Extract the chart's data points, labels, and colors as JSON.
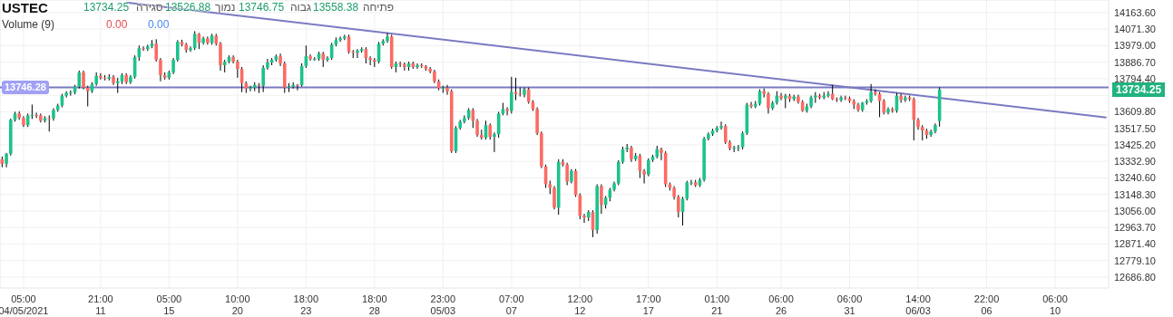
{
  "chart_data": {
    "type": "candlestick",
    "title": "USTEC",
    "annotations": [
      "13734.25",
      "סגירה",
      "13526.88",
      "נמוך",
      "13746.75",
      "גבוה",
      "13558.38",
      "פתיחה",
      "Volume (9)",
      "0.00",
      "0.00",
      "13734.25"
    ],
    "categories": [
      null,
      null,
      null,
      null,
      null,
      "05:00 04/05/2021",
      null,
      null,
      null,
      null,
      null,
      null,
      null,
      null,
      null,
      null,
      null,
      null,
      null,
      null,
      null,
      null,
      null,
      "21:00 11",
      null,
      null,
      null,
      null,
      null,
      null,
      null,
      null,
      null,
      null,
      null,
      null,
      null,
      null,
      null,
      "05:00 15",
      null,
      null,
      null,
      null,
      null,
      null,
      null,
      null,
      null,
      null,
      null,
      null,
      null,
      null,
      null,
      "10:00 20",
      null,
      null,
      null,
      null,
      null,
      null,
      null,
      null,
      null,
      null,
      null,
      null,
      null,
      null,
      null,
      "18:00 23",
      null,
      null,
      null,
      null,
      null,
      null,
      null,
      null,
      null,
      null,
      null,
      null,
      null,
      null,
      null,
      "18:00 28",
      null,
      null,
      null,
      null,
      null,
      null,
      null,
      null,
      null,
      null,
      null,
      null,
      null,
      null,
      null,
      "23:00 05/03",
      null,
      null,
      null,
      null,
      null,
      null,
      null,
      null,
      null,
      null,
      null,
      null,
      null,
      null,
      null,
      "07:00 07",
      null,
      null,
      null,
      null,
      null,
      null,
      null,
      null,
      null,
      null,
      null,
      null,
      null,
      null,
      null,
      "12:00 12",
      null,
      null,
      null,
      null,
      null,
      null,
      null,
      null,
      null,
      null,
      null,
      null,
      null,
      null,
      null,
      "17:00 17",
      null,
      null,
      null,
      null,
      null,
      null,
      null,
      null,
      null,
      null,
      null,
      null,
      null,
      null,
      null,
      "01:00 21",
      null,
      null,
      null,
      null,
      null,
      null,
      null,
      null,
      null,
      null,
      null,
      null,
      null,
      null,
      "06:00 26",
      null,
      null,
      null,
      null,
      null,
      null,
      null,
      null,
      null,
      null,
      null,
      null,
      null,
      null,
      null,
      "06:00 31",
      null,
      null,
      null,
      null,
      null,
      null,
      null,
      null,
      null,
      null,
      null,
      null,
      null,
      null,
      null,
      "14:00 06/03",
      null,
      null,
      null,
      null,
      null,
      null,
      null,
      null,
      null,
      null,
      null,
      null,
      null,
      null,
      null,
      "22:00 06",
      null,
      null,
      null,
      null,
      null,
      null,
      null,
      null,
      null,
      null,
      null,
      null,
      null,
      null,
      null,
      "06:00 10",
      null,
      null,
      null,
      null,
      null,
      null,
      null,
      null,
      null,
      null,
      null,
      null
    ],
    "ohlc": [
      [
        13345,
        13360,
        13300,
        13320
      ],
      [
        13320,
        13380,
        13300,
        13375
      ],
      [
        13375,
        13572,
        13365,
        13565
      ],
      [
        13565,
        13610,
        13555,
        13600
      ],
      [
        13600,
        13612,
        13565,
        13575
      ],
      [
        13575,
        13585,
        13525,
        13535
      ],
      [
        13535,
        13600,
        13525,
        13590
      ],
      [
        13590,
        13650,
        13570,
        13592
      ],
      [
        13592,
        13605,
        13575,
        13590
      ],
      [
        13590,
        13600,
        13550,
        13560
      ],
      [
        13560,
        13585,
        13550,
        13575
      ],
      [
        13575,
        13590,
        13500,
        13573
      ],
      [
        13573,
        13630,
        13560,
        13620
      ],
      [
        13620,
        13655,
        13610,
        13645
      ],
      [
        13645,
        13710,
        13635,
        13700
      ],
      [
        13700,
        13725,
        13690,
        13715
      ],
      [
        13715,
        13730,
        13700,
        13718
      ],
      [
        13718,
        13760,
        13708,
        13750
      ],
      [
        13750,
        13840,
        13740,
        13830
      ],
      [
        13830,
        13840,
        13735,
        13745
      ],
      [
        13745,
        13755,
        13640,
        13725
      ],
      [
        13725,
        13775,
        13715,
        13765
      ],
      [
        13765,
        13830,
        13755,
        13810
      ],
      [
        13810,
        13825,
        13790,
        13800
      ],
      [
        13800,
        13815,
        13785,
        13795
      ],
      [
        13795,
        13820,
        13785,
        13805
      ],
      [
        13805,
        13815,
        13760,
        13770
      ],
      [
        13770,
        13800,
        13715,
        13780
      ],
      [
        13780,
        13825,
        13765,
        13815
      ],
      [
        13815,
        13825,
        13765,
        13775
      ],
      [
        13775,
        13815,
        13765,
        13805
      ],
      [
        13805,
        13925,
        13795,
        13915
      ],
      [
        13915,
        13980,
        13895,
        13965
      ],
      [
        13965,
        13975,
        13950,
        13960
      ],
      [
        13960,
        13985,
        13950,
        13975
      ],
      [
        13975,
        14010,
        13965,
        13990
      ],
      [
        13990,
        14015,
        13890,
        13900
      ],
      [
        13900,
        13910,
        13780,
        13815
      ],
      [
        13815,
        13830,
        13790,
        13800
      ],
      [
        13800,
        13840,
        13790,
        13830
      ],
      [
        13830,
        13910,
        13820,
        13900
      ],
      [
        13900,
        14010,
        13890,
        14000
      ],
      [
        14000,
        14012,
        13975,
        13985
      ],
      [
        13985,
        13995,
        13940,
        13955
      ],
      [
        13955,
        13975,
        13945,
        13965
      ],
      [
        13965,
        14060,
        13955,
        14045
      ],
      [
        14045,
        14050,
        13960,
        13995
      ],
      [
        13995,
        14030,
        13985,
        14020
      ],
      [
        14020,
        14030,
        13985,
        13995
      ],
      [
        13995,
        14045,
        13985,
        14035
      ],
      [
        14035,
        14045,
        13980,
        13990
      ],
      [
        13990,
        14000,
        13840,
        13870
      ],
      [
        13870,
        13900,
        13830,
        13890
      ],
      [
        13890,
        13925,
        13880,
        13915
      ],
      [
        13915,
        13925,
        13880,
        13890
      ],
      [
        13890,
        13900,
        13800,
        13850
      ],
      [
        13850,
        13860,
        13720,
        13770
      ],
      [
        13770,
        13780,
        13715,
        13740
      ],
      [
        13740,
        13755,
        13725,
        13745
      ],
      [
        13745,
        13775,
        13725,
        13760
      ],
      [
        13760,
        13770,
        13715,
        13755
      ],
      [
        13755,
        13870,
        13720,
        13855
      ],
      [
        13855,
        13905,
        13845,
        13885
      ],
      [
        13885,
        13910,
        13870,
        13900
      ],
      [
        13900,
        13930,
        13890,
        13920
      ],
      [
        13920,
        13935,
        13865,
        13880
      ],
      [
        13880,
        13890,
        13715,
        13745
      ],
      [
        13745,
        13770,
        13720,
        13750
      ],
      [
        13750,
        13775,
        13740,
        13760
      ],
      [
        13760,
        13765,
        13730,
        13758
      ],
      [
        13758,
        13880,
        13750,
        13865
      ],
      [
        13865,
        13980,
        13855,
        13920
      ],
      [
        13920,
        13930,
        13895,
        13905
      ],
      [
        13905,
        13915,
        13895,
        13906
      ],
      [
        13906,
        13945,
        13895,
        13935
      ],
      [
        13935,
        13945,
        13860,
        13900
      ],
      [
        13900,
        13920,
        13890,
        13910
      ],
      [
        13910,
        13995,
        13900,
        13985
      ],
      [
        13985,
        14025,
        13975,
        14010
      ],
      [
        14010,
        14030,
        14000,
        14020
      ],
      [
        14020,
        14040,
        14010,
        14030
      ],
      [
        14030,
        14040,
        13935,
        13945
      ],
      [
        13945,
        13955,
        13910,
        13940
      ],
      [
        13940,
        13960,
        13910,
        13950
      ],
      [
        13950,
        13970,
        13940,
        13960
      ],
      [
        13960,
        13970,
        13880,
        13910
      ],
      [
        13910,
        13920,
        13870,
        13900
      ],
      [
        13900,
        13910,
        13860,
        13890
      ],
      [
        13890,
        14000,
        13880,
        13990
      ],
      [
        13990,
        14015,
        13980,
        14005
      ],
      [
        14005,
        14050,
        13995,
        14030
      ],
      [
        14030,
        14040,
        13850,
        13860
      ],
      [
        13860,
        13890,
        13830,
        13880
      ],
      [
        13880,
        13890,
        13860,
        13875
      ],
      [
        13875,
        13885,
        13840,
        13860
      ],
      [
        13860,
        13890,
        13840,
        13880
      ],
      [
        13880,
        13890,
        13850,
        13860
      ],
      [
        13860,
        13880,
        13850,
        13870
      ],
      [
        13870,
        13880,
        13855,
        13865
      ],
      [
        13865,
        13870,
        13840,
        13850
      ],
      [
        13850,
        13860,
        13825,
        13835
      ],
      [
        13835,
        13845,
        13770,
        13780
      ],
      [
        13780,
        13790,
        13730,
        13740
      ],
      [
        13740,
        13755,
        13715,
        13745
      ],
      [
        13745,
        13760,
        13705,
        13725
      ],
      [
        13725,
        13735,
        13380,
        13390
      ],
      [
        13390,
        13530,
        13380,
        13520
      ],
      [
        13520,
        13565,
        13510,
        13555
      ],
      [
        13555,
        13590,
        13545,
        13575
      ],
      [
        13575,
        13630,
        13565,
        13620
      ],
      [
        13620,
        13630,
        13520,
        13560
      ],
      [
        13560,
        13570,
        13470,
        13480
      ],
      [
        13480,
        13510,
        13455,
        13465
      ],
      [
        13465,
        13560,
        13455,
        13535
      ],
      [
        13535,
        13545,
        13455,
        13470
      ],
      [
        13470,
        13495,
        13385,
        13485
      ],
      [
        13485,
        13610,
        13465,
        13600
      ],
      [
        13600,
        13660,
        13590,
        13625
      ],
      [
        13625,
        13635,
        13590,
        13615
      ],
      [
        13615,
        13805,
        13600,
        13720
      ],
      [
        13720,
        13800,
        13675,
        13710
      ],
      [
        13710,
        13745,
        13695,
        13705
      ],
      [
        13705,
        13745,
        13690,
        13735
      ],
      [
        13735,
        13745,
        13655,
        13665
      ],
      [
        13665,
        13675,
        13615,
        13625
      ],
      [
        13625,
        13635,
        13480,
        13490
      ],
      [
        13490,
        13500,
        13295,
        13305
      ],
      [
        13305,
        13315,
        13185,
        13205
      ],
      [
        13205,
        13225,
        13150,
        13185
      ],
      [
        13185,
        13195,
        13065,
        13075
      ],
      [
        13075,
        13345,
        13035,
        13330
      ],
      [
        13330,
        13345,
        13305,
        13315
      ],
      [
        13315,
        13325,
        13200,
        13220
      ],
      [
        13220,
        13290,
        13210,
        13280
      ],
      [
        13280,
        13290,
        13135,
        13145
      ],
      [
        13145,
        13155,
        13010,
        13030
      ],
      [
        13030,
        13040,
        12990,
        13020
      ],
      [
        13020,
        13060,
        13000,
        13050
      ],
      [
        13050,
        13060,
        12910,
        12950
      ],
      [
        12950,
        13205,
        12930,
        13195
      ],
      [
        13195,
        13205,
        13040,
        13090
      ],
      [
        13090,
        13140,
        13070,
        13130
      ],
      [
        13130,
        13185,
        13110,
        13175
      ],
      [
        13175,
        13220,
        13165,
        13210
      ],
      [
        13210,
        13340,
        13200,
        13330
      ],
      [
        13330,
        13415,
        13320,
        13400
      ],
      [
        13400,
        13430,
        13385,
        13410
      ],
      [
        13410,
        13420,
        13330,
        13345
      ],
      [
        13345,
        13380,
        13335,
        13365
      ],
      [
        13365,
        13375,
        13240,
        13280
      ],
      [
        13280,
        13290,
        13210,
        13260
      ],
      [
        13260,
        13350,
        13250,
        13340
      ],
      [
        13340,
        13370,
        13330,
        13360
      ],
      [
        13360,
        13420,
        13350,
        13400
      ],
      [
        13400,
        13410,
        13340,
        13380
      ],
      [
        13380,
        13390,
        13190,
        13205
      ],
      [
        13205,
        13215,
        13170,
        13185
      ],
      [
        13185,
        13195,
        13120,
        13135
      ],
      [
        13135,
        13145,
        13020,
        13050
      ],
      [
        13050,
        13135,
        12975,
        13125
      ],
      [
        13125,
        13225,
        13115,
        13215
      ],
      [
        13215,
        13230,
        13200,
        13216
      ],
      [
        13216,
        13230,
        13190,
        13200
      ],
      [
        13200,
        13240,
        13190,
        13230
      ],
      [
        13230,
        13470,
        13220,
        13460
      ],
      [
        13460,
        13495,
        13450,
        13485
      ],
      [
        13485,
        13515,
        13475,
        13505
      ],
      [
        13505,
        13530,
        13495,
        13520
      ],
      [
        13520,
        13555,
        13510,
        13530
      ],
      [
        13530,
        13540,
        13430,
        13440
      ],
      [
        13440,
        13450,
        13395,
        13405
      ],
      [
        13405,
        13420,
        13385,
        13410
      ],
      [
        13410,
        13425,
        13390,
        13412
      ],
      [
        13412,
        13500,
        13400,
        13490
      ],
      [
        13490,
        13660,
        13480,
        13650
      ],
      [
        13650,
        13665,
        13630,
        13640
      ],
      [
        13640,
        13670,
        13630,
        13655
      ],
      [
        13655,
        13735,
        13645,
        13725
      ],
      [
        13725,
        13740,
        13690,
        13710
      ],
      [
        13710,
        13720,
        13600,
        13630
      ],
      [
        13630,
        13670,
        13620,
        13660
      ],
      [
        13660,
        13725,
        13650,
        13700
      ],
      [
        13700,
        13715,
        13675,
        13685
      ],
      [
        13685,
        13710,
        13630,
        13700
      ],
      [
        13700,
        13710,
        13665,
        13680
      ],
      [
        13680,
        13705,
        13670,
        13695
      ],
      [
        13695,
        13705,
        13655,
        13665
      ],
      [
        13665,
        13675,
        13610,
        13615
      ],
      [
        13615,
        13655,
        13605,
        13640
      ],
      [
        13640,
        13700,
        13630,
        13690
      ],
      [
        13690,
        13720,
        13660,
        13700
      ],
      [
        13700,
        13710,
        13680,
        13690
      ],
      [
        13690,
        13720,
        13680,
        13700
      ],
      [
        13700,
        13725,
        13690,
        13710
      ],
      [
        13710,
        13760,
        13675,
        13680
      ],
      [
        13680,
        13690,
        13665,
        13675
      ],
      [
        13675,
        13700,
        13665,
        13690
      ],
      [
        13690,
        13700,
        13675,
        13685
      ],
      [
        13685,
        13695,
        13660,
        13670
      ],
      [
        13670,
        13680,
        13625,
        13650
      ],
      [
        13650,
        13660,
        13610,
        13620
      ],
      [
        13620,
        13665,
        13610,
        13660
      ],
      [
        13660,
        13680,
        13650,
        13670
      ],
      [
        13670,
        13765,
        13660,
        13720
      ],
      [
        13720,
        13735,
        13700,
        13710
      ],
      [
        13710,
        13720,
        13580,
        13670
      ],
      [
        13670,
        13680,
        13595,
        13605
      ],
      [
        13605,
        13635,
        13595,
        13625
      ],
      [
        13625,
        13635,
        13605,
        13615
      ],
      [
        13615,
        13715,
        13605,
        13700
      ],
      [
        13700,
        13710,
        13660,
        13675
      ],
      [
        13675,
        13700,
        13665,
        13690
      ],
      [
        13690,
        13700,
        13670,
        13680
      ],
      [
        13680,
        13690,
        13450,
        13565
      ],
      [
        13565,
        13575,
        13510,
        13525
      ],
      [
        13525,
        13535,
        13450,
        13505
      ],
      [
        13505,
        13515,
        13460,
        13480
      ],
      [
        13480,
        13510,
        13470,
        13500
      ],
      [
        13500,
        13545,
        13490,
        13535
      ],
      [
        13558.38,
        13746.75,
        13526.88,
        13734.25
      ],
      null,
      null,
      null,
      null,
      null,
      null,
      null,
      null,
      null,
      null,
      null,
      null,
      null,
      null,
      null,
      null,
      null,
      null,
      null,
      null,
      null,
      null,
      null,
      null,
      null,
      null,
      null,
      null,
      null,
      null,
      null,
      null,
      null,
      null,
      null,
      null,
      null,
      null,
      null
    ],
    "series": [
      {
        "type": "line",
        "color": "#7a7ac2",
        "values": [
          null,
          null,
          null,
          null,
          null,
          null,
          null,
          null,
          null,
          null,
          null,
          null,
          null,
          null,
          null,
          null,
          null,
          null,
          null,
          null,
          null,
          null,
          null,
          null,
          null,
          null,
          null,
          null,
          null,
          14220,
          null,
          null,
          null,
          null,
          null,
          null,
          null,
          null,
          null,
          null,
          null,
          null,
          null,
          null,
          null,
          null,
          null,
          null,
          null,
          null,
          null,
          null,
          null,
          null,
          null,
          null,
          null,
          null,
          null,
          null,
          null,
          null,
          null,
          null,
          null,
          null,
          null,
          null,
          null,
          null,
          null,
          null,
          null,
          null,
          null,
          null,
          null,
          null,
          null,
          null,
          null,
          null,
          null,
          null,
          null,
          null,
          null,
          null,
          null,
          null,
          null,
          null,
          null,
          null,
          null,
          null,
          null,
          null,
          null,
          null,
          null,
          null,
          null,
          null,
          null,
          null,
          null,
          null,
          null,
          null,
          null,
          null,
          null,
          null,
          null,
          null,
          null,
          null,
          null,
          null,
          null,
          null,
          null,
          null,
          null,
          null,
          null,
          null,
          null,
          null,
          null,
          null,
          null,
          null,
          null,
          null,
          null,
          null,
          null,
          null,
          null,
          null,
          null,
          null,
          null,
          null,
          null,
          null,
          null,
          null,
          null,
          null,
          null,
          null,
          null,
          null,
          null,
          null,
          null,
          null,
          null,
          null,
          null,
          null,
          null,
          null,
          null,
          null,
          null,
          null,
          null,
          null,
          null,
          null,
          null,
          null,
          null,
          null,
          null,
          null,
          null,
          null,
          null,
          null,
          null,
          null,
          null,
          null,
          null,
          null,
          null,
          null,
          null,
          null,
          null,
          null,
          null,
          null,
          null,
          null,
          null,
          null,
          null,
          null,
          null,
          null,
          null,
          null,
          null,
          null,
          null,
          null,
          null,
          null,
          null,
          null,
          null,
          null,
          null,
          null,
          null,
          null,
          null,
          null,
          null,
          null,
          null,
          null,
          null,
          null,
          null,
          null,
          null,
          null,
          null,
          null,
          null,
          null,
          null,
          null,
          null,
          null,
          null,
          null,
          null,
          null,
          null,
          null,
          null,
          null,
          null,
          null,
          null,
          null,
          null,
          null,
          null,
          null,
          13578
        ]
      }
    ],
    "ref_lines": [
      {
        "axis": "y",
        "value": 13746.28,
        "label": "13746.28",
        "color": "#7a7ac2"
      }
    ],
    "ylim": [
      12626,
      14234
    ],
    "yticks": [
      {
        "value": 14163.6,
        "label": "14163.60"
      },
      {
        "value": 14071.3,
        "label": "14071.30"
      },
      {
        "value": 13979,
        "label": "13979.00"
      },
      {
        "value": 13886.7,
        "label": "13886.70"
      },
      {
        "value": 13794.4,
        "label": "13794.40"
      },
      {
        "value": 13702.1,
        "label": null
      },
      {
        "value": 13609.8,
        "label": "13609.80"
      },
      {
        "value": 13517.5,
        "label": "13517.50"
      },
      {
        "value": 13425.2,
        "label": "13425.20"
      },
      {
        "value": 13332.9,
        "label": "13332.90"
      },
      {
        "value": 13240.6,
        "label": "13240.60"
      },
      {
        "value": 13148.3,
        "label": "13148.30"
      },
      {
        "value": 13056,
        "label": "13056.00"
      },
      {
        "value": 12963.7,
        "label": "12963.70"
      },
      {
        "value": 12871.4,
        "label": "12871.40"
      },
      {
        "value": 12779.1,
        "label": "12779.10"
      },
      {
        "value": 12686.8,
        "label": "12686.80"
      }
    ],
    "grid": true
  }
}
